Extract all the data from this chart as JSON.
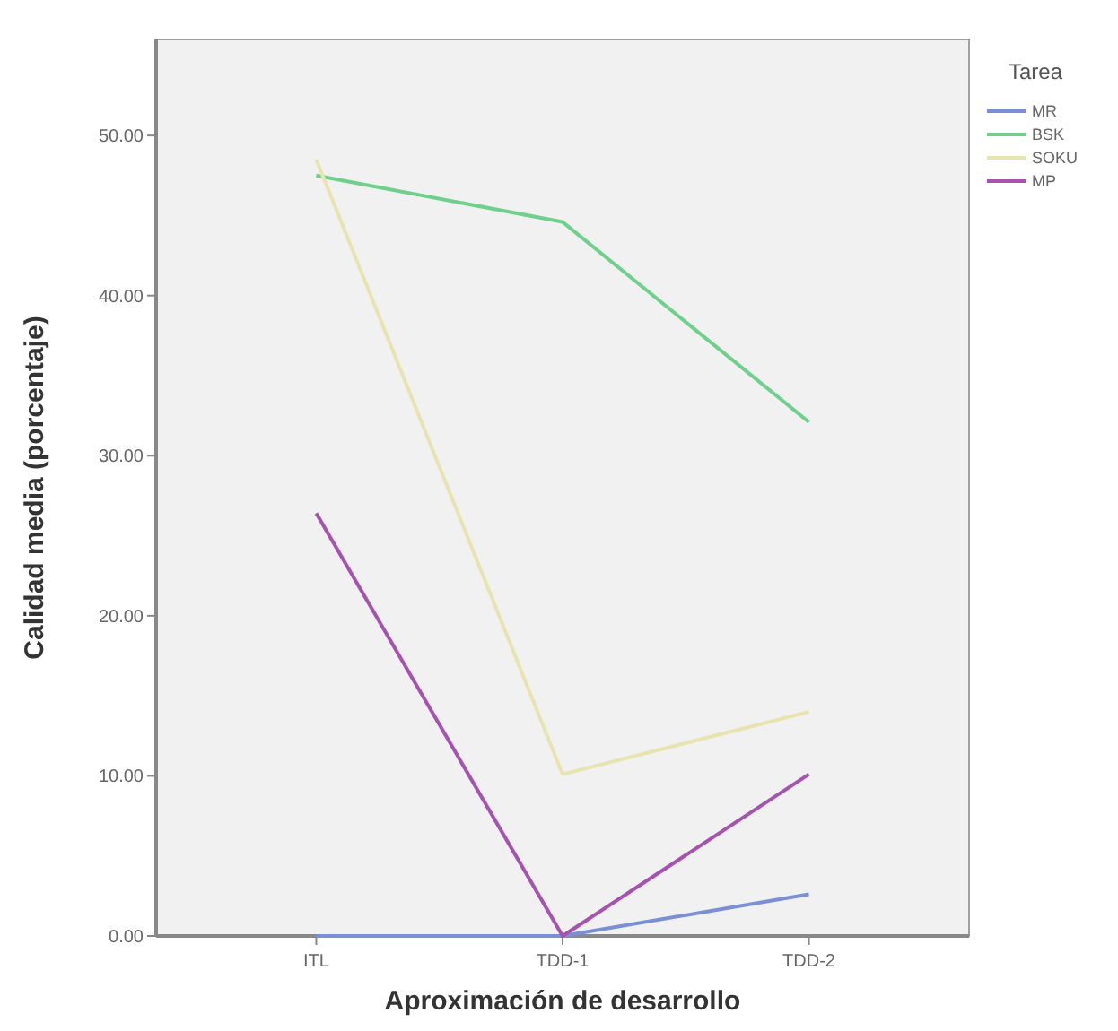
{
  "chart_data": {
    "type": "line",
    "xlabel": "Aproximación de desarrollo",
    "ylabel": "Calidad media (porcentaje)",
    "legend_title": "Tarea",
    "legend": "right",
    "grid": false,
    "marker": "none",
    "line_style": "solid",
    "categories": [
      "ITL",
      "TDD-1",
      "TDD-2"
    ],
    "ylim": [
      0,
      56
    ],
    "yticks": [
      {
        "value": 0,
        "label": "0.00"
      },
      {
        "value": 10,
        "label": "10.00"
      },
      {
        "value": 20,
        "label": "20.00"
      },
      {
        "value": 30,
        "label": "30.00"
      },
      {
        "value": 40,
        "label": "40.00"
      },
      {
        "value": 50,
        "label": "50.00"
      }
    ],
    "series": [
      {
        "name": "MR",
        "color": "#7b8fd6",
        "values": [
          0,
          0,
          2.6
        ]
      },
      {
        "name": "BSK",
        "color": "#6fd08c",
        "values": [
          47.5,
          44.6,
          32.1
        ]
      },
      {
        "name": "SOKU",
        "color": "#e8e4b0",
        "values": [
          48.5,
          10.1,
          14.0
        ]
      },
      {
        "name": "MP",
        "color": "#a552b0",
        "values": [
          26.4,
          0,
          10.1
        ]
      }
    ]
  }
}
